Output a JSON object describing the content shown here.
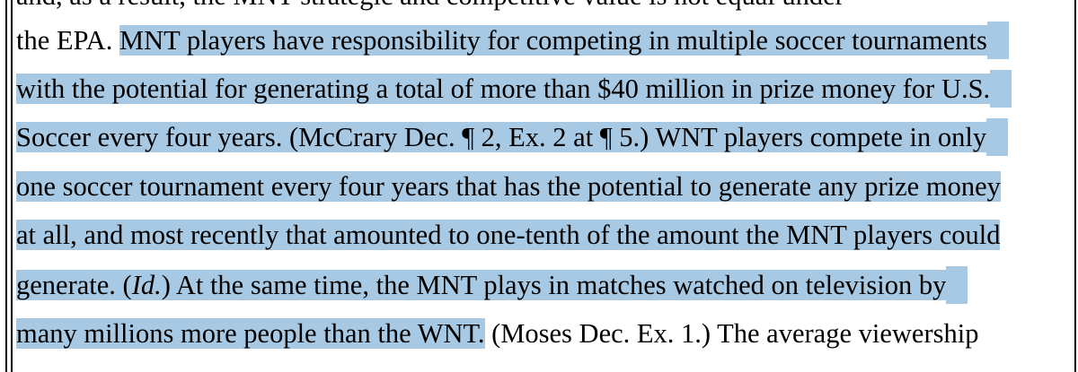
{
  "document": {
    "partial_top_line": "and, as a result, the MNT strategic and competitive value is not equal under",
    "lines": [
      {
        "plain_before": "the EPA. ",
        "highlight": "MNT players have responsibility for competing in multiple soccer tournaments",
        "plain_after": ""
      },
      {
        "plain_before": "",
        "highlight": "with the potential for generating a total of more than $40 million in prize money for U.S.",
        "plain_after": ""
      },
      {
        "plain_before": "",
        "highlight": "Soccer every four years. (McCrary Dec. ¶ 2, Ex. 2 at ¶ 5.) WNT players compete in only",
        "plain_after": ""
      },
      {
        "plain_before": "",
        "highlight": "one soccer tournament every four years that has the potential to generate any prize money",
        "plain_after": ""
      },
      {
        "plain_before": "",
        "highlight": "at all, and most recently that amounted to one-tenth of the amount the MNT players could",
        "plain_after": ""
      },
      {
        "plain_before": "",
        "highlight_before_italic": "generate. (",
        "highlight_italic": "Id.",
        "highlight_after_italic": ") At the same time, the MNT plays in matches watched on television by",
        "plain_after": ""
      },
      {
        "plain_before": "",
        "highlight": "many millions more people than the WNT.",
        "plain_after": " (Moses Dec. Ex. 1.) The average viewership"
      }
    ]
  }
}
